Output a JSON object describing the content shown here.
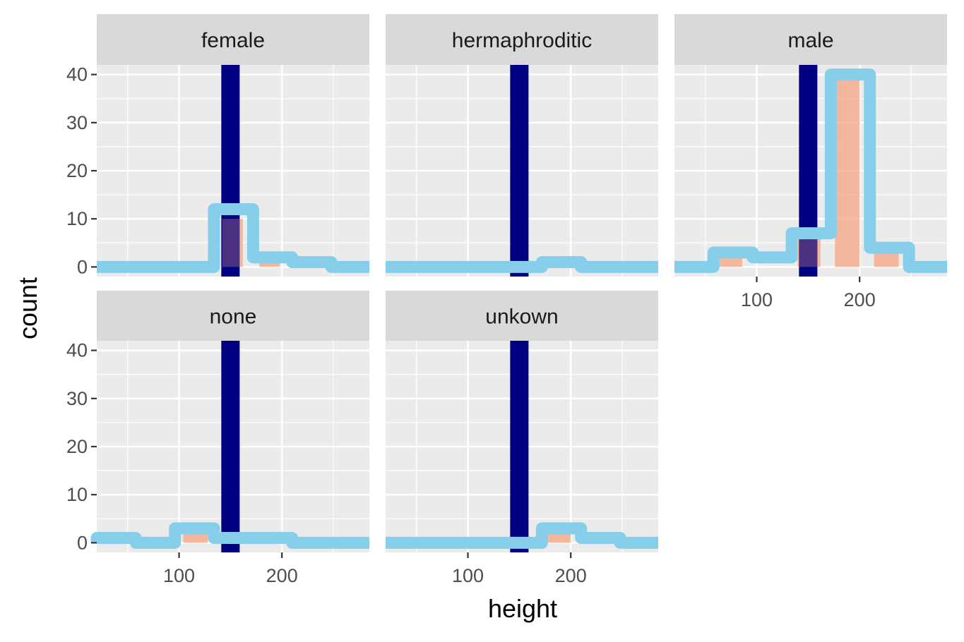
{
  "chart_data": {
    "type": "bar",
    "xlabel": "height",
    "ylabel": "count",
    "xlim": [
      20,
      285
    ],
    "ylim": [
      -2,
      42
    ],
    "x_ticks": [
      100,
      200
    ],
    "y_ticks": [
      0,
      10,
      20,
      30,
      40
    ],
    "facets": [
      {
        "label": "female",
        "outline_bins": [
          {
            "x0": 20,
            "x1": 58,
            "count": 0
          },
          {
            "x0": 58,
            "x1": 96,
            "count": 0
          },
          {
            "x0": 96,
            "x1": 134,
            "count": 0
          },
          {
            "x0": 134,
            "x1": 172,
            "count": 12
          },
          {
            "x0": 172,
            "x1": 210,
            "count": 2
          },
          {
            "x0": 210,
            "x1": 248,
            "count": 1
          },
          {
            "x0": 248,
            "x1": 285,
            "count": 0
          }
        ],
        "fill_bins": [
          {
            "x0": 142,
            "x1": 162,
            "count": 10
          },
          {
            "x0": 178,
            "x1": 198,
            "count": 1
          },
          {
            "x0": 216,
            "x1": 236,
            "count": 0.5
          }
        ]
      },
      {
        "label": "hermaphroditic",
        "outline_bins": [
          {
            "x0": 20,
            "x1": 58,
            "count": 0
          },
          {
            "x0": 58,
            "x1": 96,
            "count": 0
          },
          {
            "x0": 96,
            "x1": 134,
            "count": 0
          },
          {
            "x0": 134,
            "x1": 172,
            "count": 0
          },
          {
            "x0": 172,
            "x1": 210,
            "count": 1
          },
          {
            "x0": 210,
            "x1": 248,
            "count": 0
          },
          {
            "x0": 248,
            "x1": 285,
            "count": 0
          }
        ],
        "fill_bins": [
          {
            "x0": 178,
            "x1": 198,
            "count": 0.5
          }
        ]
      },
      {
        "label": "male",
        "outline_bins": [
          {
            "x0": 20,
            "x1": 58,
            "count": 0
          },
          {
            "x0": 58,
            "x1": 96,
            "count": 3
          },
          {
            "x0": 96,
            "x1": 134,
            "count": 2
          },
          {
            "x0": 134,
            "x1": 172,
            "count": 7
          },
          {
            "x0": 172,
            "x1": 210,
            "count": 40
          },
          {
            "x0": 210,
            "x1": 248,
            "count": 4
          },
          {
            "x0": 248,
            "x1": 285,
            "count": 0
          }
        ],
        "fill_bins": [
          {
            "x0": 64,
            "x1": 86,
            "count": 2.5
          },
          {
            "x0": 140,
            "x1": 162,
            "count": 6.5
          },
          {
            "x0": 176,
            "x1": 200,
            "count": 39
          },
          {
            "x0": 214,
            "x1": 238,
            "count": 3.5
          }
        ]
      },
      {
        "label": "none",
        "outline_bins": [
          {
            "x0": 20,
            "x1": 58,
            "count": 1
          },
          {
            "x0": 58,
            "x1": 96,
            "count": 0
          },
          {
            "x0": 96,
            "x1": 134,
            "count": 3
          },
          {
            "x0": 134,
            "x1": 172,
            "count": 1
          },
          {
            "x0": 172,
            "x1": 210,
            "count": 1
          },
          {
            "x0": 210,
            "x1": 248,
            "count": 0
          },
          {
            "x0": 248,
            "x1": 285,
            "count": 0
          }
        ],
        "fill_bins": [
          {
            "x0": 104,
            "x1": 128,
            "count": 2
          }
        ]
      },
      {
        "label": "unkown",
        "outline_bins": [
          {
            "x0": 20,
            "x1": 58,
            "count": 0
          },
          {
            "x0": 58,
            "x1": 96,
            "count": 0
          },
          {
            "x0": 96,
            "x1": 134,
            "count": 0
          },
          {
            "x0": 134,
            "x1": 172,
            "count": 0
          },
          {
            "x0": 172,
            "x1": 210,
            "count": 3
          },
          {
            "x0": 210,
            "x1": 248,
            "count": 1
          },
          {
            "x0": 248,
            "x1": 285,
            "count": 0
          }
        ],
        "fill_bins": [
          {
            "x0": 178,
            "x1": 200,
            "count": 2
          }
        ]
      }
    ],
    "vertical_line": {
      "x": 150,
      "color": "#000080"
    },
    "colors": {
      "panel_background": "#ebebeb",
      "grid": "#ffffff",
      "strip_background": "#d9d9d9",
      "outline": "#87ceeb",
      "fill": "#f4a582",
      "vertical_line": "#000080"
    }
  }
}
